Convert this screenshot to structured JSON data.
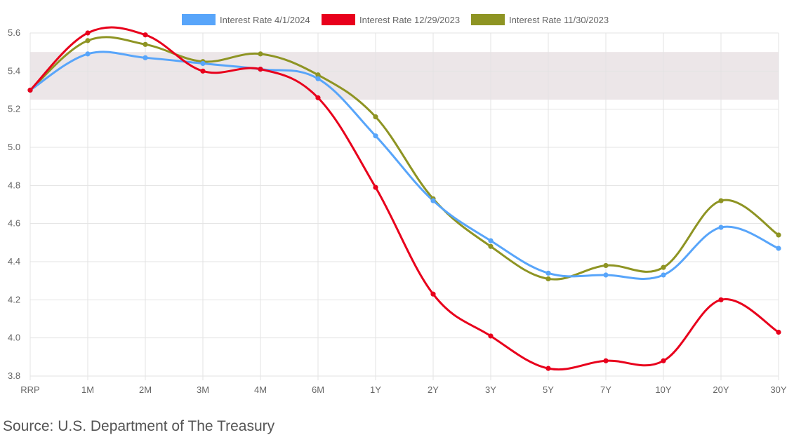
{
  "chart_data": {
    "type": "line",
    "title": "",
    "xlabel": "",
    "ylabel": "",
    "categories": [
      "RRP",
      "1M",
      "2M",
      "3M",
      "4M",
      "6M",
      "1Y",
      "2Y",
      "3Y",
      "5Y",
      "7Y",
      "10Y",
      "20Y",
      "30Y"
    ],
    "ylim": [
      3.8,
      5.6
    ],
    "yticks": [
      "3.8",
      "4.0",
      "4.2",
      "4.4",
      "4.6",
      "4.8",
      "5.0",
      "5.2",
      "5.4",
      "5.6"
    ],
    "grid": true,
    "legend_position": "top-center",
    "shaded_band": [
      5.25,
      5.5
    ],
    "series": [
      {
        "name": "Interest Rate 4/1/2024",
        "color": "#58a5fa",
        "values": [
          5.3,
          5.49,
          5.47,
          5.44,
          5.41,
          5.36,
          5.06,
          4.72,
          4.51,
          4.34,
          4.33,
          4.33,
          4.58,
          4.47
        ]
      },
      {
        "name": "Interest Rate 12/29/2023",
        "color": "#e8001c",
        "values": [
          5.3,
          5.6,
          5.59,
          5.4,
          5.41,
          5.26,
          4.79,
          4.23,
          4.01,
          3.84,
          3.88,
          3.88,
          4.2,
          4.03
        ]
      },
      {
        "name": "Interest Rate 11/30/2023",
        "color": "#8e9423",
        "values": [
          5.3,
          5.56,
          5.54,
          5.45,
          5.49,
          5.38,
          5.16,
          4.73,
          4.48,
          4.31,
          4.38,
          4.37,
          4.72,
          4.54
        ]
      }
    ]
  },
  "footer": {
    "source": "Source: U.S. Department of The Treasury"
  }
}
